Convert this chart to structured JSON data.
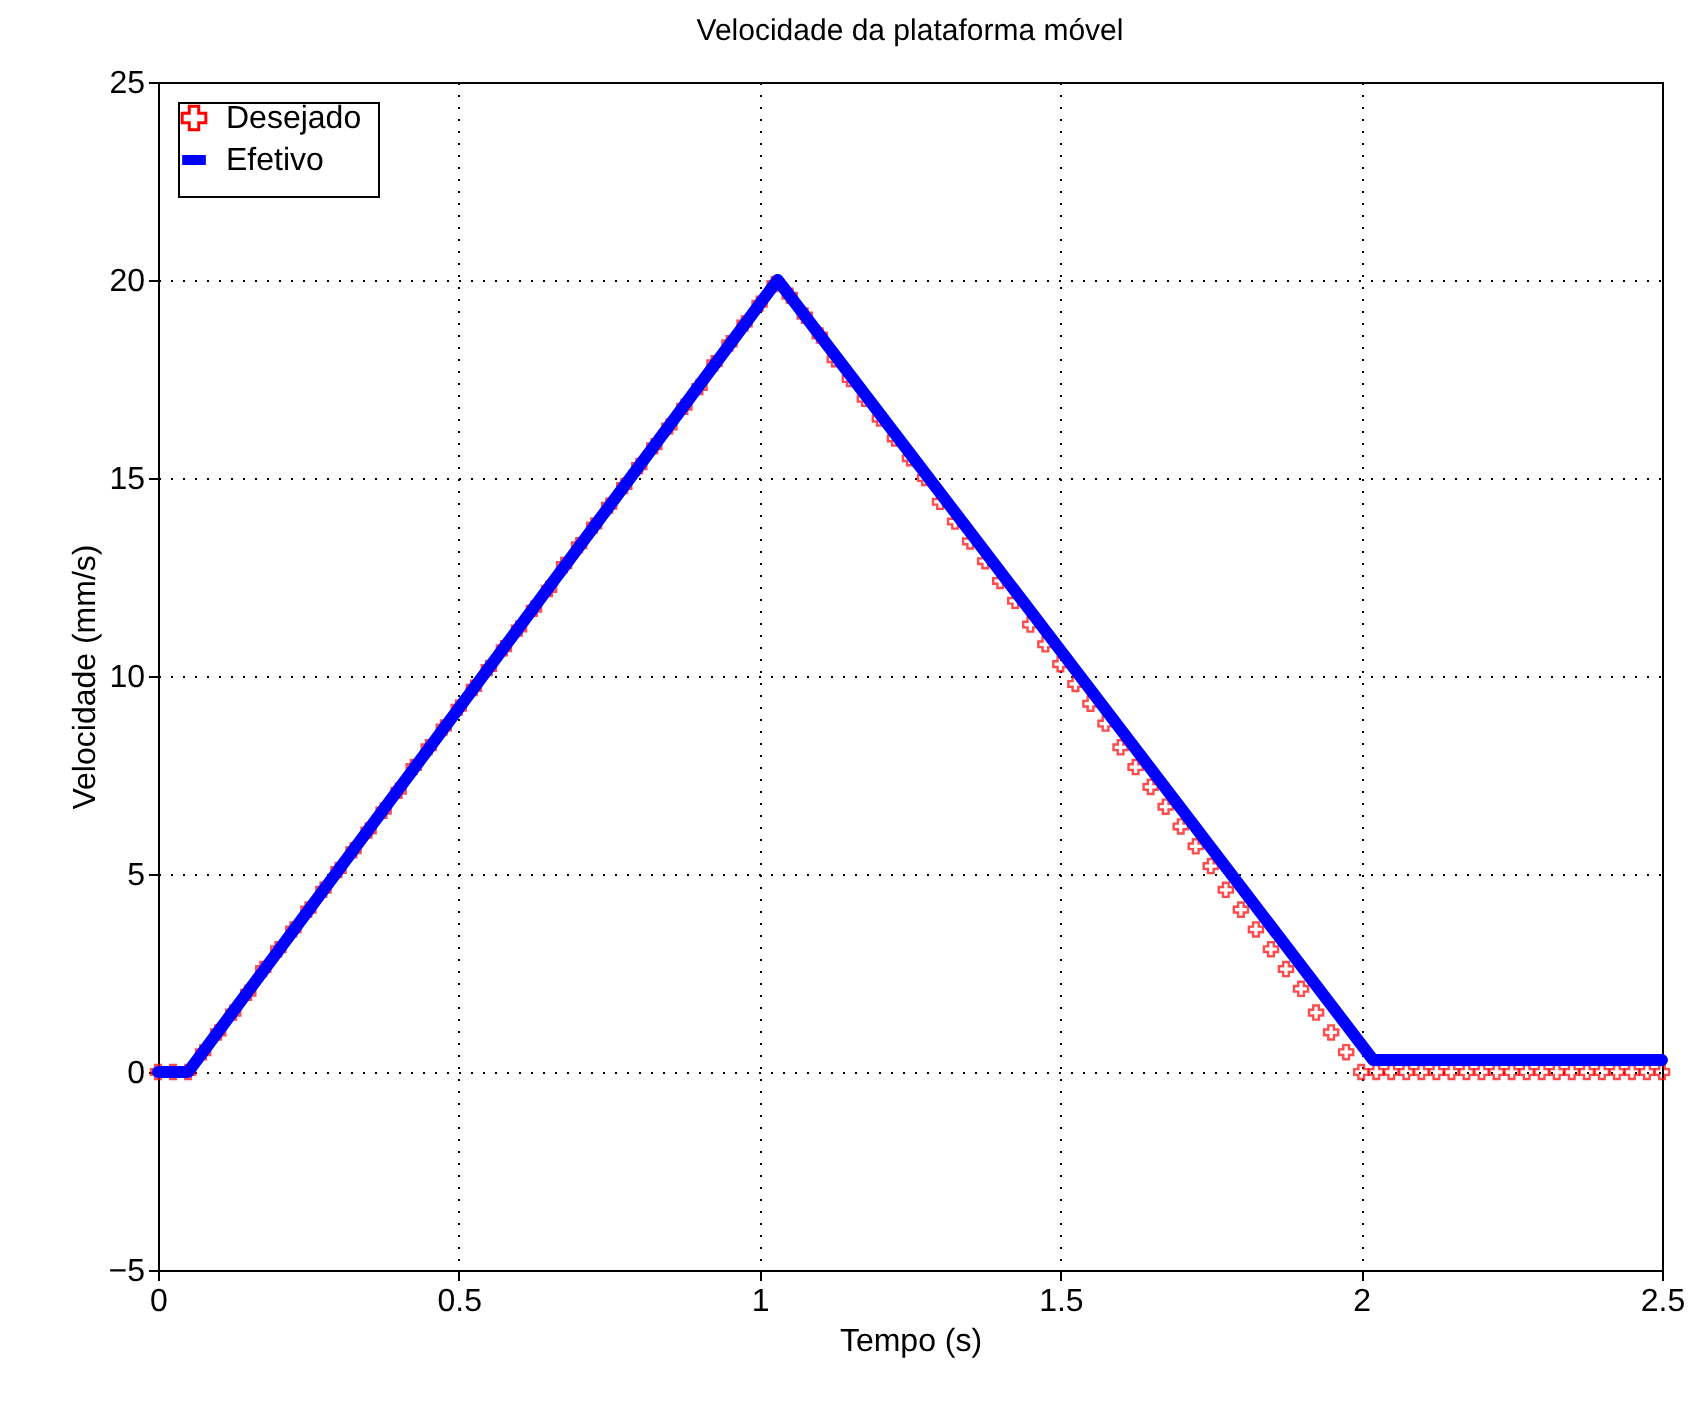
{
  "chart_data": {
    "type": "line",
    "title": "Velocidade da plataforma móvel",
    "xlabel": "Tempo (s)",
    "ylabel": "Velocidade (mm/s)",
    "xlim": [
      0,
      2.5
    ],
    "xticks": [
      0,
      0.5,
      1,
      1.5,
      2,
      2.5
    ],
    "ylim": [
      -5,
      25
    ],
    "yticks": [
      -5,
      0,
      5,
      10,
      15,
      20,
      25
    ],
    "grid": true,
    "legend": "top left",
    "series": [
      {
        "name": "Desejado",
        "type": "scatter",
        "marker": "cross",
        "color": "#ff0000",
        "x": [
          0,
          0.025,
          0.05,
          0.075,
          0.1,
          0.125,
          0.15,
          0.175,
          0.2,
          0.225,
          0.25,
          0.275,
          0.3,
          0.325,
          0.35,
          0.375,
          0.4,
          0.425,
          0.45,
          0.475,
          0.5,
          0.525,
          0.55,
          0.575,
          0.6,
          0.625,
          0.65,
          0.675,
          0.7,
          0.725,
          0.75,
          0.775,
          0.8,
          0.825,
          0.85,
          0.875,
          0.9,
          0.925,
          0.95,
          0.975,
          1,
          1.025,
          1.05,
          1.075,
          1.1,
          1.125,
          1.15,
          1.175,
          1.2,
          1.225,
          1.25,
          1.275,
          1.3,
          1.325,
          1.35,
          1.375,
          1.4,
          1.425,
          1.45,
          1.475,
          1.5,
          1.525,
          1.55,
          1.575,
          1.6,
          1.625,
          1.65,
          1.675,
          1.7,
          1.725,
          1.75,
          1.775,
          1.8,
          1.825,
          1.85,
          1.875,
          1.9,
          1.925,
          1.95,
          1.975,
          2,
          2.025,
          2.05,
          2.075,
          2.1,
          2.125,
          2.15,
          2.175,
          2.2,
          2.225,
          2.25,
          2.275,
          2.3,
          2.325,
          2.35,
          2.375,
          2.4,
          2.425,
          2.45,
          2.475,
          2.5
        ],
        "values": [
          0,
          0,
          0,
          0.5,
          1.0,
          1.5,
          2.0,
          2.6,
          3.1,
          3.6,
          4.1,
          4.6,
          5.1,
          5.6,
          6.1,
          6.6,
          7.1,
          7.7,
          8.2,
          8.7,
          9.2,
          9.7,
          10.2,
          10.7,
          11.2,
          11.7,
          12.2,
          12.8,
          13.3,
          13.8,
          14.3,
          14.8,
          15.3,
          15.8,
          16.3,
          16.8,
          17.3,
          17.9,
          18.4,
          18.9,
          19.4,
          19.9,
          19.6,
          19.1,
          18.6,
          18.0,
          17.5,
          17.0,
          16.5,
          16.0,
          15.5,
          15.0,
          14.4,
          13.9,
          13.4,
          12.9,
          12.4,
          11.9,
          11.3,
          10.8,
          10.3,
          9.8,
          9.3,
          8.8,
          8.2,
          7.7,
          7.2,
          6.7,
          6.2,
          5.7,
          5.2,
          4.6,
          4.1,
          3.6,
          3.1,
          2.6,
          2.1,
          1.5,
          1.0,
          0.5,
          0,
          0,
          0,
          0,
          0,
          0,
          0,
          0,
          0,
          0,
          0,
          0,
          0,
          0,
          0,
          0,
          0,
          0,
          0,
          0,
          0
        ]
      },
      {
        "name": "Efetivo",
        "type": "line",
        "marker": "none",
        "line_style": "solid",
        "color": "#0000ff",
        "x": [
          0,
          0.05,
          1.03,
          2.02,
          2.5
        ],
        "values": [
          0,
          0,
          20,
          0.3,
          0.3
        ]
      }
    ]
  }
}
